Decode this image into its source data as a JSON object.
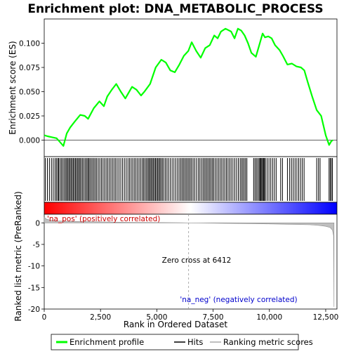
{
  "chart_data": {
    "type": "line",
    "title": "Enrichment plot: DNA_METABOLIC_PROCESS",
    "x_range": [
      0,
      13000
    ],
    "x_ticks": [
      0,
      2500,
      5000,
      7500,
      10000,
      12500
    ],
    "x_tick_labels": [
      "0",
      "2,500",
      "5,000",
      "7,500",
      "10,000",
      "12,500"
    ],
    "xlabel": "Rank in Ordered Dataset",
    "top_panel": {
      "ylabel": "Enrichment score (ES)",
      "ylim": [
        -0.017,
        0.125
      ],
      "y_ticks": [
        0.0,
        0.025,
        0.05,
        0.075,
        0.1
      ],
      "y_tick_labels": [
        "0.000",
        "0.025",
        "0.050",
        "0.075",
        "0.100"
      ],
      "series": [
        {
          "name": "Enrichment profile",
          "color": "#00ff00",
          "x": [
            0,
            150,
            350,
            550,
            700,
            850,
            1000,
            1150,
            1350,
            1600,
            1800,
            1950,
            2200,
            2450,
            2650,
            2800,
            3000,
            3200,
            3400,
            3600,
            3700,
            3900,
            4100,
            4300,
            4450,
            4700,
            4950,
            5200,
            5400,
            5600,
            5800,
            6000,
            6200,
            6400,
            6550,
            6750,
            6950,
            7150,
            7350,
            7550,
            7700,
            7850,
            8050,
            8300,
            8450,
            8600,
            8750,
            8900,
            9050,
            9200,
            9400,
            9550,
            9700,
            9800,
            9950,
            10100,
            10250,
            10450,
            10600,
            10800,
            11000,
            11200,
            11400,
            11550,
            11700,
            11900,
            12100,
            12300,
            12500,
            12650,
            12750,
            12820
          ],
          "values": [
            0.005,
            0.004,
            0.003,
            0.002,
            -0.002,
            -0.006,
            0.007,
            0.013,
            0.019,
            0.026,
            0.025,
            0.022,
            0.033,
            0.04,
            0.035,
            0.045,
            0.052,
            0.058,
            0.05,
            0.043,
            0.047,
            0.055,
            0.052,
            0.046,
            0.05,
            0.058,
            0.075,
            0.083,
            0.08,
            0.072,
            0.07,
            0.078,
            0.087,
            0.092,
            0.101,
            0.092,
            0.085,
            0.095,
            0.098,
            0.108,
            0.105,
            0.112,
            0.115,
            0.112,
            0.105,
            0.115,
            0.113,
            0.108,
            0.1,
            0.09,
            0.086,
            0.098,
            0.11,
            0.106,
            0.107,
            0.105,
            0.098,
            0.093,
            0.087,
            0.078,
            0.079,
            0.076,
            0.075,
            0.072,
            0.06,
            0.045,
            0.031,
            0.025,
            0.005,
            -0.005,
            -0.001,
            0.0
          ]
        }
      ]
    },
    "hits_panel": {
      "name": "Hits",
      "hit_ranks": [
        50,
        140,
        230,
        320,
        400,
        480,
        540,
        600,
        640,
        700,
        760,
        820,
        880,
        940,
        990,
        1040,
        1090,
        1140,
        1190,
        1240,
        1290,
        1340,
        1390,
        1440,
        1490,
        1540,
        1590,
        1640,
        1700,
        1760,
        1820,
        1880,
        1930,
        1980,
        2030,
        2090,
        2150,
        2210,
        2270,
        2330,
        2400,
        2470,
        2540,
        2610,
        2680,
        2750,
        2820,
        2890,
        2960,
        3030,
        3100,
        3170,
        3240,
        3320,
        3400,
        3480,
        3560,
        3640,
        3720,
        3790,
        3860,
        3930,
        4000,
        4070,
        4140,
        4210,
        4280,
        4350,
        4410,
        4470,
        4530,
        4590,
        4640,
        4690,
        4740,
        4790,
        4840,
        4890,
        4940,
        4990,
        5040,
        5090,
        5140,
        5190,
        5250,
        5310,
        5380,
        5450,
        5520,
        5600,
        5680,
        5760,
        5840,
        5920,
        5990,
        6060,
        6120,
        6180,
        6240,
        6300,
        6360,
        6420,
        6480,
        6540,
        6610,
        6680,
        6760,
        6840,
        6910,
        6980,
        7050,
        7110,
        7170,
        7230,
        7290,
        7350,
        7410,
        7470,
        7530,
        7600,
        7670,
        7740,
        7810,
        7880,
        7950,
        8020,
        8090,
        8160,
        8230,
        8300,
        8380,
        8460,
        8540,
        8620,
        8700,
        8760,
        8820,
        8880,
        8940,
        9000,
        9300,
        9360,
        9420,
        9480,
        9540,
        9580,
        9620,
        9660,
        9700,
        9740,
        9780,
        9820,
        9900,
        9980,
        10060,
        10140,
        10220,
        10300,
        10500,
        10580,
        10800,
        10900,
        10980,
        11060,
        11140,
        11220,
        11300,
        11380,
        11460,
        11540,
        12100,
        12180,
        12250,
        12650,
        12700,
        12750,
        12800
      ]
    },
    "rank_bar": {
      "left_color": "#ff0000",
      "mid_color": "#ffffff",
      "right_color": "#0000ff"
    },
    "bottom_panel": {
      "ylabel": "Ranked list metric (PreRanked)",
      "series_name": "Ranking metric scores",
      "ylim": [
        -20,
        2
      ],
      "y_ticks": [
        0,
        -5,
        -10,
        -15,
        -20
      ],
      "y_tick_labels": [
        "0",
        "-5",
        "-10",
        "-15",
        "-20"
      ],
      "x": [
        0,
        100,
        300,
        600,
        1000,
        2000,
        3000,
        4000,
        5000,
        6000,
        6412,
        7000,
        8000,
        9000,
        10000,
        11000,
        11800,
        12200,
        12500,
        12700,
        12800,
        12850,
        12870
      ],
      "values": [
        1.3,
        0.85,
        0.6,
        0.45,
        0.35,
        0.25,
        0.18,
        0.12,
        0.07,
        0.03,
        0.0,
        -0.04,
        -0.1,
        -0.17,
        -0.25,
        -0.35,
        -0.45,
        -0.6,
        -0.8,
        -1.1,
        -1.7,
        -3.0,
        -19.5
      ],
      "annotations": [
        "'na_pos' (positively correlated)",
        "Zero cross at 6412",
        "'na_neg' (negatively correlated)"
      ],
      "zero_cross": 6412
    },
    "legend": {
      "position": "bottom",
      "entries": [
        "Enrichment profile",
        "Hits",
        "Ranking metric scores"
      ]
    }
  }
}
